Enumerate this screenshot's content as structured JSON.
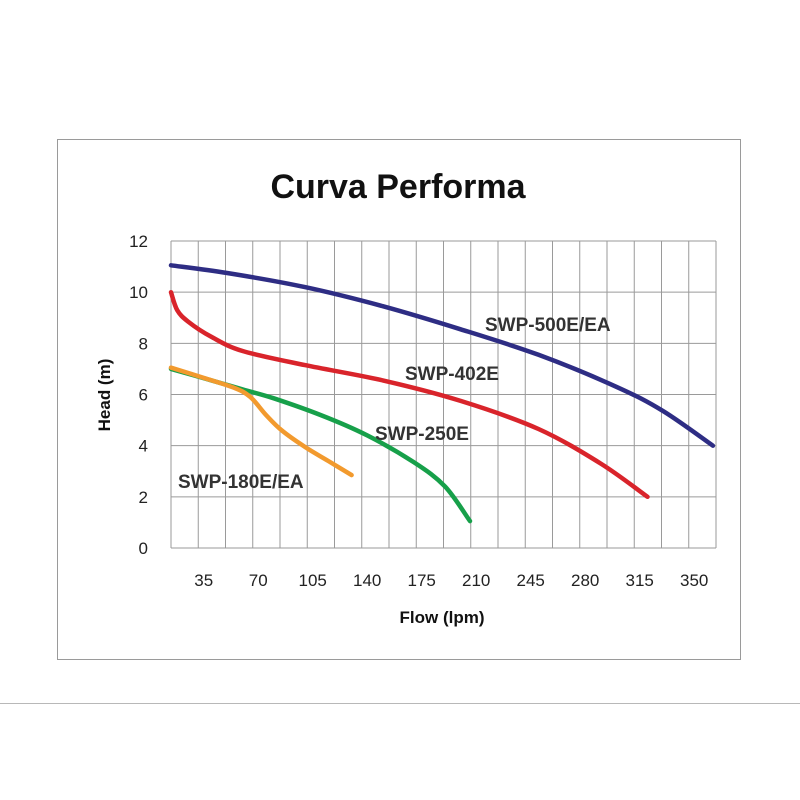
{
  "chart_data": {
    "type": "line",
    "title": "Curva Performa",
    "xlabel": "Flow (lpm)",
    "ylabel": "Head (m)",
    "xlim": [
      14,
      364
    ],
    "ylim": [
      0,
      12
    ],
    "grid": true,
    "x_ticks": [
      35,
      70,
      105,
      140,
      175,
      210,
      245,
      280,
      315,
      350
    ],
    "y_ticks": [
      0,
      2,
      4,
      6,
      8,
      10,
      12
    ],
    "series": [
      {
        "name": "SWP-500E/EA",
        "color": "#2e2d84",
        "points": [
          [
            14,
            11.05
          ],
          [
            50,
            10.75
          ],
          [
            100,
            10.2
          ],
          [
            150,
            9.45
          ],
          [
            200,
            8.55
          ],
          [
            250,
            7.55
          ],
          [
            300,
            6.3
          ],
          [
            330,
            5.35
          ],
          [
            362,
            4.0
          ]
        ]
      },
      {
        "name": "SWP-402E",
        "color": "#d9242b",
        "points": [
          [
            14,
            10.0
          ],
          [
            18,
            9.3
          ],
          [
            25,
            8.85
          ],
          [
            40,
            8.25
          ],
          [
            60,
            7.7
          ],
          [
            100,
            7.15
          ],
          [
            150,
            6.55
          ],
          [
            200,
            5.75
          ],
          [
            250,
            4.65
          ],
          [
            290,
            3.3
          ],
          [
            320,
            2.0
          ]
        ]
      },
      {
        "name": "SWP-250E",
        "color": "#17a04a",
        "points": [
          [
            14,
            7.0
          ],
          [
            40,
            6.55
          ],
          [
            60,
            6.2
          ],
          [
            80,
            5.85
          ],
          [
            110,
            5.2
          ],
          [
            140,
            4.4
          ],
          [
            170,
            3.35
          ],
          [
            190,
            2.4
          ],
          [
            206,
            1.05
          ]
        ]
      },
      {
        "name": "SWP-180E/EA",
        "color": "#f29a2e",
        "points": [
          [
            14,
            7.05
          ],
          [
            35,
            6.65
          ],
          [
            55,
            6.25
          ],
          [
            65,
            5.9
          ],
          [
            75,
            5.2
          ],
          [
            85,
            4.6
          ],
          [
            100,
            3.95
          ],
          [
            115,
            3.4
          ],
          [
            130,
            2.85
          ]
        ]
      }
    ]
  }
}
